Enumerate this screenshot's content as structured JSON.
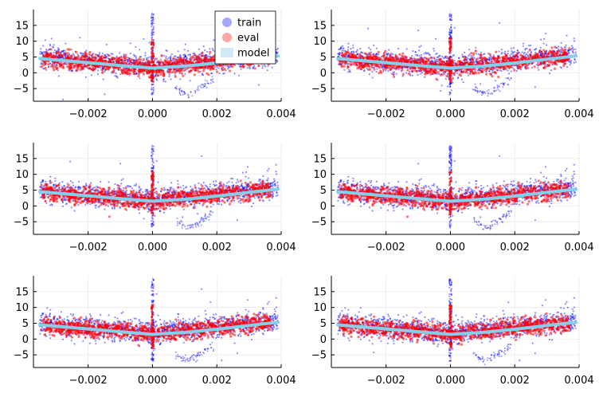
{
  "colors": {
    "train": "#0000ff",
    "eval": "#ff0000",
    "model": "#87ceeb",
    "model_legend": "#cfeaf5",
    "grid": "#e6e6e6",
    "axis": "#000000"
  },
  "legend": {
    "placement": "top-right of first panel",
    "entries": [
      {
        "label": "train",
        "color": "#0000ff"
      },
      {
        "label": "eval",
        "color": "#ff0000"
      },
      {
        "label": "model",
        "color": "#87ceeb"
      }
    ]
  },
  "chart_data": [
    {
      "type": "scatter",
      "panel": 1,
      "grid": true,
      "xlim": [
        -0.0037,
        0.004
      ],
      "ylim": [
        -9,
        20
      ],
      "xticks": [
        -0.002,
        0.0,
        0.002,
        0.004
      ],
      "xtick_labels": [
        "−0.002",
        "0.000",
        "0.002",
        "0.004"
      ],
      "yticks": [
        -5,
        0,
        5,
        10,
        15
      ],
      "ytick_labels": [
        "−5",
        "0",
        "5",
        "10",
        "15"
      ],
      "series": [
        {
          "name": "train",
          "x": [
            -0.0035,
            -0.0025,
            -0.0015,
            -0.0005,
            0.0,
            0.0005,
            0.0015,
            0.0025,
            0.0035
          ],
          "y": [
            5,
            4,
            3,
            2.5,
            1.5,
            2.5,
            3.5,
            4.5,
            5.5
          ]
        },
        {
          "name": "eval",
          "x": [
            -0.0035,
            -0.0025,
            -0.0015,
            -0.0005,
            0.0,
            0.0005,
            0.0015,
            0.0025,
            0.0035
          ],
          "y": [
            4.5,
            3.5,
            3,
            2,
            1.5,
            2,
            3,
            4,
            5
          ]
        },
        {
          "name": "model",
          "x": [
            -0.0035,
            -0.002,
            -0.001,
            0.0,
            0.001,
            0.002,
            0.003,
            0.0039
          ],
          "y": [
            4.5,
            3.2,
            2.3,
            1.5,
            2.1,
            3.1,
            4.3,
            5.3
          ]
        }
      ]
    },
    {
      "type": "scatter",
      "panel": 2,
      "grid": true,
      "xlim": [
        -0.0037,
        0.004
      ],
      "ylim": [
        -9,
        20
      ],
      "xticks": [
        -0.002,
        0.0,
        0.002,
        0.004
      ],
      "xtick_labels": [
        "−0.002",
        "0.000",
        "0.002",
        "0.004"
      ],
      "yticks": [
        -5,
        0,
        5,
        10,
        15
      ],
      "ytick_labels": [
        "−5",
        "0",
        "5",
        "10",
        "15"
      ],
      "series": [
        {
          "name": "train",
          "x": [
            -0.0035,
            -0.0025,
            -0.0015,
            -0.0005,
            0.0,
            0.0005,
            0.0015,
            0.0025,
            0.0035
          ],
          "y": [
            5,
            4,
            3,
            2.5,
            1.5,
            2.5,
            3.5,
            4.5,
            5.5
          ]
        },
        {
          "name": "eval",
          "x": [
            -0.0035,
            -0.0025,
            -0.0015,
            -0.0005,
            0.0,
            0.0005,
            0.0015,
            0.0025,
            0.0035
          ],
          "y": [
            4.5,
            3.5,
            3,
            2,
            1.5,
            2,
            3,
            4,
            5
          ]
        },
        {
          "name": "model",
          "x": [
            -0.0035,
            -0.002,
            -0.001,
            0.0,
            0.001,
            0.002,
            0.003,
            0.0039
          ],
          "y": [
            4.5,
            3.2,
            2.3,
            1.5,
            2.1,
            3.1,
            4.3,
            5.3
          ]
        }
      ]
    },
    {
      "type": "scatter",
      "panel": 3,
      "grid": true,
      "xlim": [
        -0.0037,
        0.004
      ],
      "ylim": [
        -9,
        20
      ],
      "xticks": [
        -0.002,
        0.0,
        0.002,
        0.004
      ],
      "xtick_labels": [
        "−0.002",
        "0.000",
        "0.002",
        "0.004"
      ],
      "yticks": [
        -5,
        0,
        5,
        10,
        15
      ],
      "ytick_labels": [
        "−5",
        "0",
        "5",
        "10",
        "15"
      ],
      "series": [
        {
          "name": "train",
          "x": [
            -0.0035,
            -0.0025,
            -0.0015,
            -0.0005,
            0.0,
            0.0005,
            0.0015,
            0.0025,
            0.0035
          ],
          "y": [
            5,
            4,
            3,
            2.5,
            1.5,
            2.5,
            3.5,
            4.5,
            5.5
          ]
        },
        {
          "name": "eval",
          "x": [
            -0.0035,
            -0.0025,
            -0.0015,
            -0.0005,
            0.0,
            0.0005,
            0.0015,
            0.0025,
            0.0035
          ],
          "y": [
            4.5,
            3.5,
            3,
            2,
            1.5,
            2,
            3,
            4,
            5
          ]
        },
        {
          "name": "model",
          "x": [
            -0.0035,
            -0.002,
            -0.001,
            0.0,
            0.001,
            0.002,
            0.003,
            0.0039
          ],
          "y": [
            4.5,
            3.2,
            2.3,
            1.5,
            2.1,
            3.1,
            4.3,
            5.3
          ]
        }
      ]
    },
    {
      "type": "scatter",
      "panel": 4,
      "grid": true,
      "xlim": [
        -0.0037,
        0.004
      ],
      "ylim": [
        -9,
        20
      ],
      "xticks": [
        -0.002,
        0.0,
        0.002,
        0.004
      ],
      "xtick_labels": [
        "−0.002",
        "0.000",
        "0.002",
        "0.004"
      ],
      "yticks": [
        -5,
        0,
        5,
        10,
        15
      ],
      "ytick_labels": [
        "−5",
        "0",
        "5",
        "10",
        "15"
      ],
      "series": [
        {
          "name": "train",
          "x": [
            -0.0035,
            -0.0025,
            -0.0015,
            -0.0005,
            0.0,
            0.0005,
            0.0015,
            0.0025,
            0.0035
          ],
          "y": [
            5,
            4,
            3,
            2.5,
            1.5,
            2.5,
            3.5,
            4.5,
            5.5
          ]
        },
        {
          "name": "eval",
          "x": [
            -0.0035,
            -0.0025,
            -0.0015,
            -0.0005,
            0.0,
            0.0005,
            0.0015,
            0.0025,
            0.0035
          ],
          "y": [
            4.5,
            3.5,
            3,
            2,
            1.5,
            2,
            3,
            4,
            5
          ]
        },
        {
          "name": "model",
          "x": [
            -0.0035,
            -0.002,
            -0.001,
            0.0,
            0.001,
            0.002,
            0.003,
            0.0039
          ],
          "y": [
            4.5,
            3.2,
            2.3,
            1.5,
            2.1,
            3.1,
            4.3,
            5.3
          ]
        }
      ]
    },
    {
      "type": "scatter",
      "panel": 5,
      "grid": true,
      "xlim": [
        -0.0037,
        0.004
      ],
      "ylim": [
        -9,
        20
      ],
      "xticks": [
        -0.002,
        0.0,
        0.002,
        0.004
      ],
      "xtick_labels": [
        "−0.002",
        "0.000",
        "0.002",
        "0.004"
      ],
      "yticks": [
        -5,
        0,
        5,
        10,
        15
      ],
      "ytick_labels": [
        "−5",
        "0",
        "5",
        "10",
        "15"
      ],
      "series": [
        {
          "name": "train",
          "x": [
            -0.0035,
            -0.0025,
            -0.0015,
            -0.0005,
            0.0,
            0.0005,
            0.0015,
            0.0025,
            0.0035
          ],
          "y": [
            5,
            4,
            3,
            2.5,
            1.5,
            2.5,
            3.5,
            4.5,
            5.5
          ]
        },
        {
          "name": "eval",
          "x": [
            -0.0035,
            -0.0025,
            -0.0015,
            -0.0005,
            0.0,
            0.0005,
            0.0015,
            0.0025,
            0.0035
          ],
          "y": [
            4.5,
            3.5,
            3,
            2,
            1.5,
            2,
            3,
            4,
            5
          ]
        },
        {
          "name": "model",
          "x": [
            -0.0035,
            -0.002,
            -0.001,
            0.0,
            0.001,
            0.002,
            0.003,
            0.0039
          ],
          "y": [
            4.5,
            3.2,
            2.3,
            1.5,
            2.1,
            3.1,
            4.3,
            5.3
          ]
        }
      ]
    },
    {
      "type": "scatter",
      "panel": 6,
      "grid": true,
      "xlim": [
        -0.0037,
        0.004
      ],
      "ylim": [
        -9,
        20
      ],
      "xticks": [
        -0.002,
        0.0,
        0.002,
        0.004
      ],
      "xtick_labels": [
        "−0.002",
        "0.000",
        "0.002",
        "0.004"
      ],
      "yticks": [
        -5,
        0,
        5,
        10,
        15
      ],
      "ytick_labels": [
        "−5",
        "0",
        "5",
        "10",
        "15"
      ],
      "series": [
        {
          "name": "train",
          "x": [
            -0.0035,
            -0.0025,
            -0.0015,
            -0.0005,
            0.0,
            0.0005,
            0.0015,
            0.0025,
            0.0035
          ],
          "y": [
            5,
            4,
            3,
            2.5,
            1.5,
            2.5,
            3.5,
            4.5,
            5.5
          ]
        },
        {
          "name": "eval",
          "x": [
            -0.0035,
            -0.0025,
            -0.0015,
            -0.0005,
            0.0,
            0.0005,
            0.0015,
            0.0025,
            0.0035
          ],
          "y": [
            4.5,
            3.5,
            3,
            2,
            1.5,
            2,
            3,
            4,
            5
          ]
        },
        {
          "name": "model",
          "x": [
            -0.0035,
            -0.002,
            -0.001,
            0.0,
            0.001,
            0.002,
            0.003,
            0.0039
          ],
          "y": [
            4.5,
            3.2,
            2.3,
            1.5,
            2.1,
            3.1,
            4.3,
            5.3
          ]
        }
      ]
    }
  ]
}
